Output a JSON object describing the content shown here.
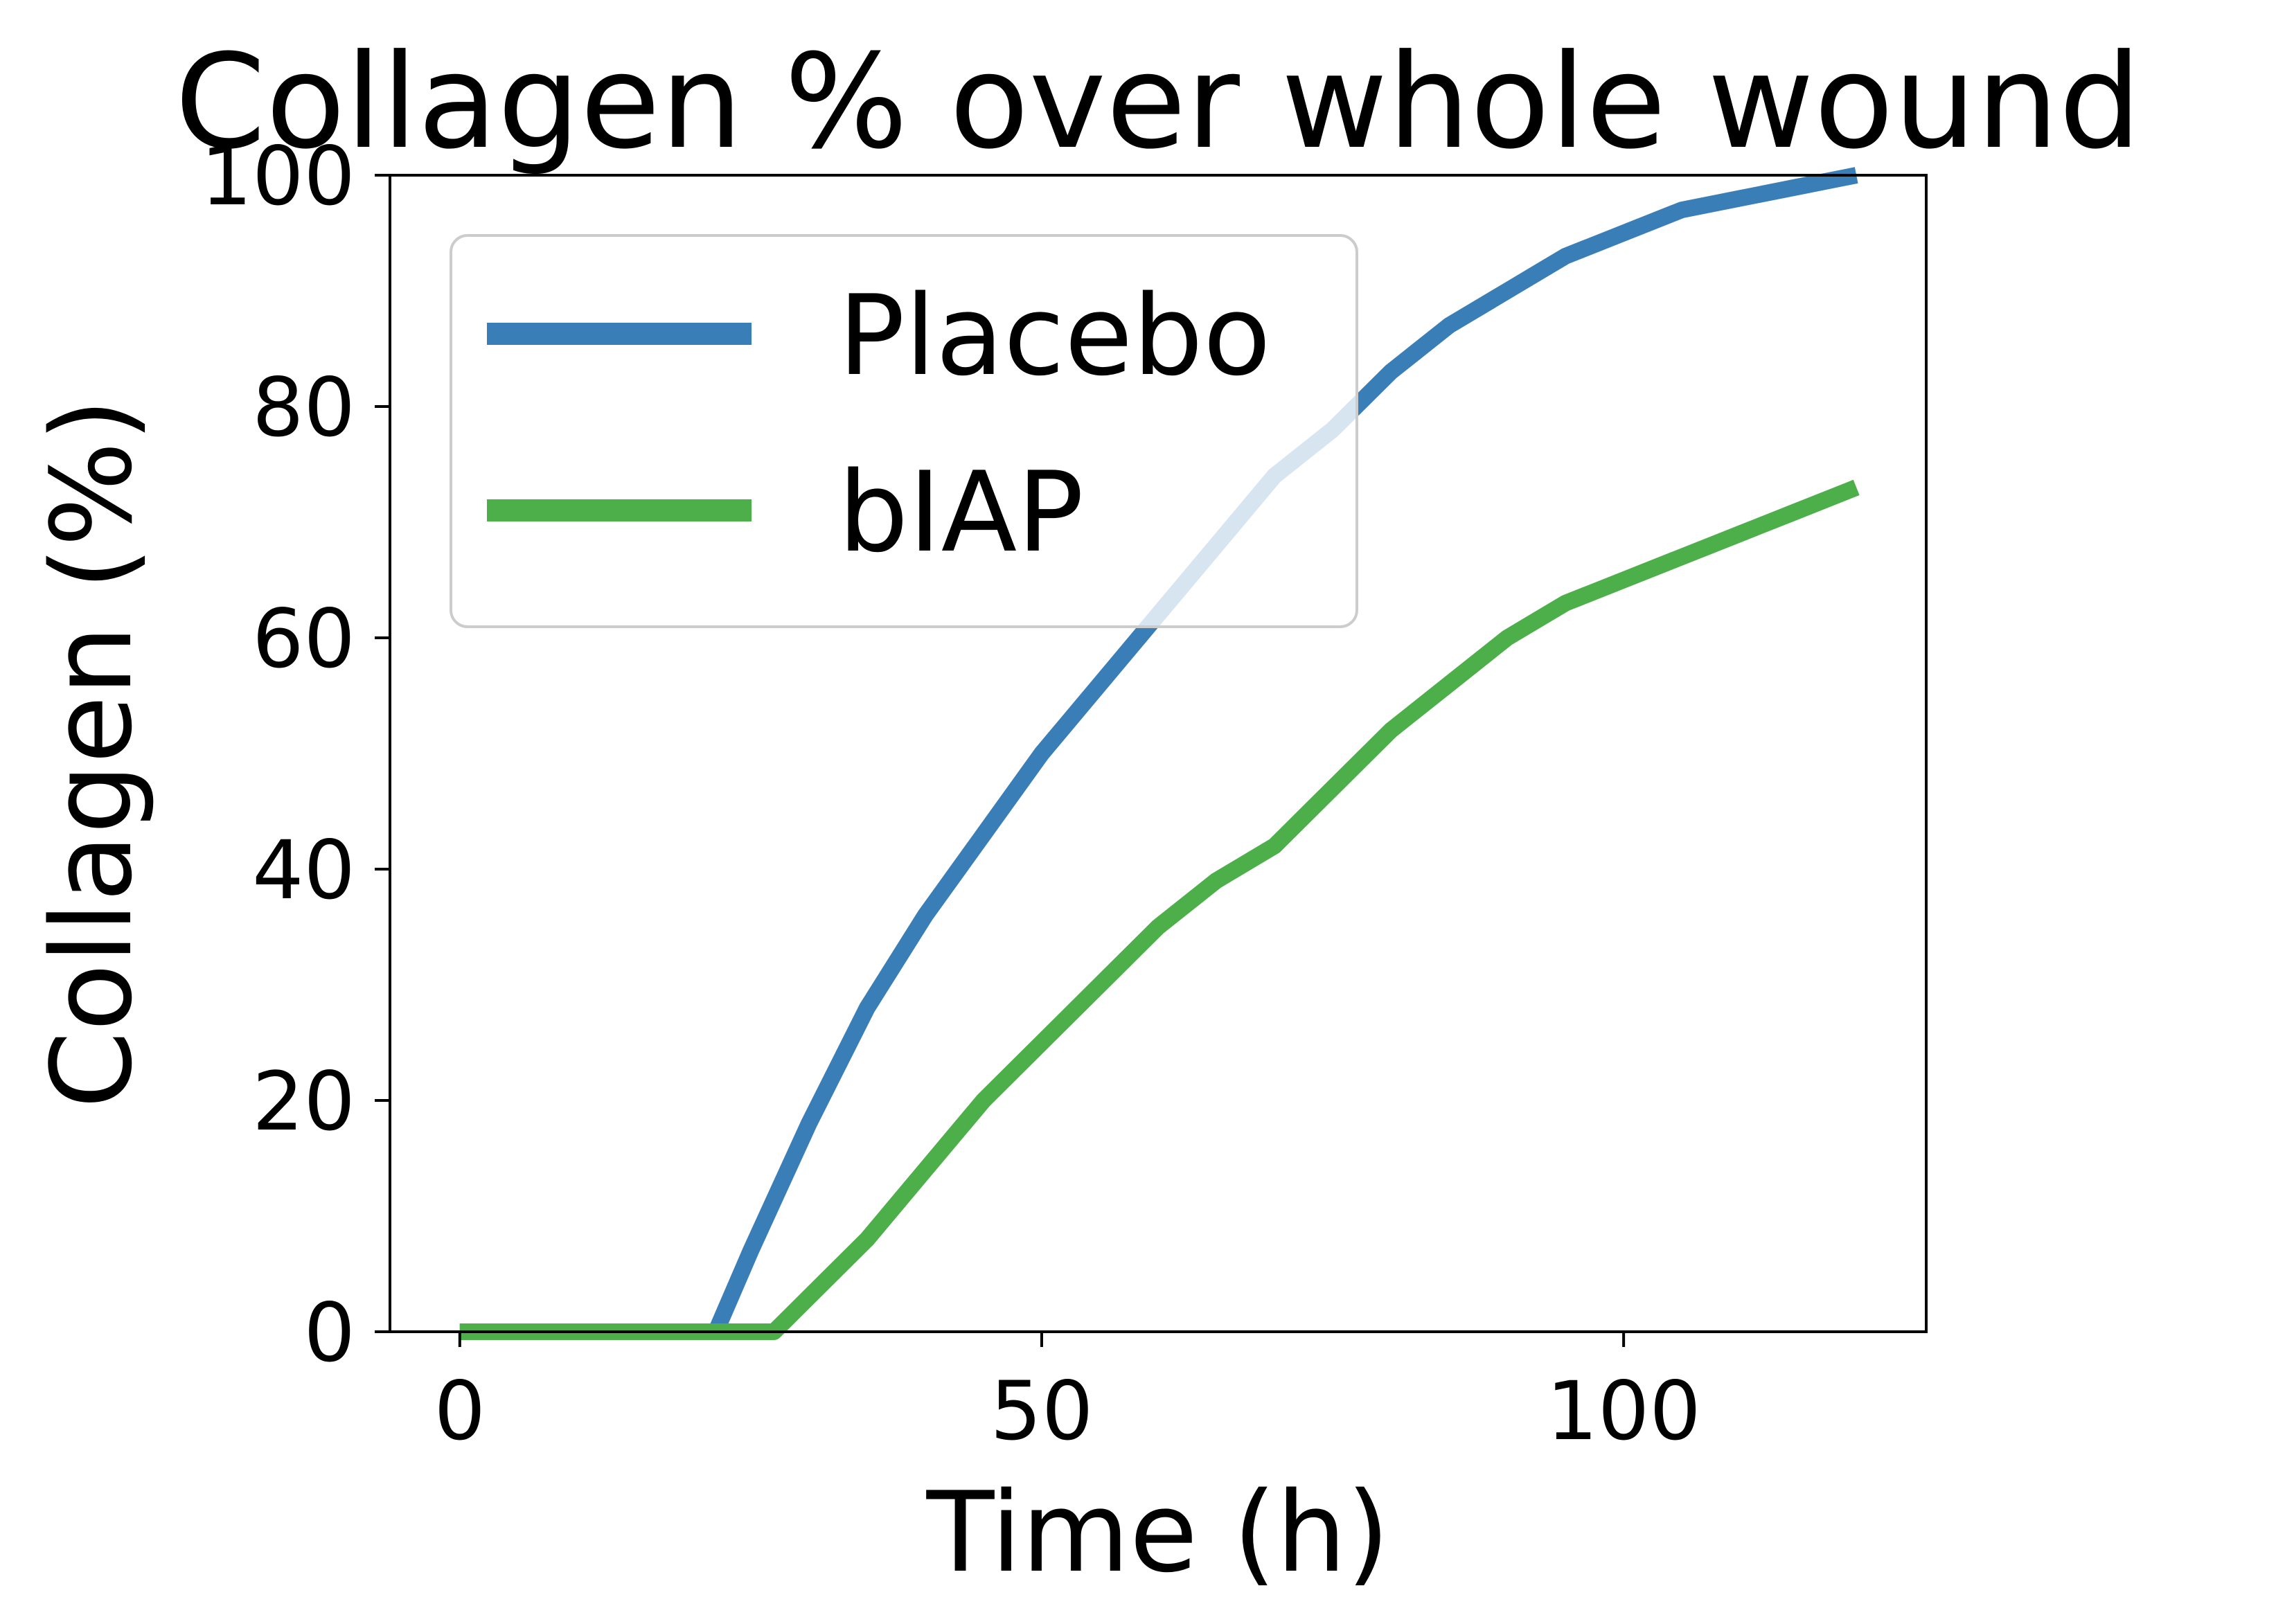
{
  "chart_data": {
    "type": "line",
    "title": "Collagen % over whole wound",
    "xlabel": "Time (h)",
    "ylabel": "Collagen (%)",
    "xlim": [
      -6,
      126
    ],
    "ylim": [
      0,
      100
    ],
    "xticks": [
      0,
      50,
      100
    ],
    "yticks": [
      0,
      20,
      40,
      60,
      80,
      100
    ],
    "grid": false,
    "legend_position": "upper-left",
    "series": [
      {
        "name": "Placebo",
        "color": "#3a7eb8",
        "x": [
          0,
          5,
          10,
          15,
          20,
          22,
          25,
          30,
          35,
          40,
          45,
          50,
          55,
          60,
          65,
          70,
          75,
          80,
          85,
          90,
          95,
          100,
          105,
          110,
          115,
          120
        ],
        "y": [
          0,
          0,
          0,
          0,
          0,
          0,
          7,
          18,
          28,
          36,
          43,
          50,
          56,
          62,
          68,
          74,
          78,
          83,
          87,
          90,
          93,
          95,
          97,
          98,
          99,
          100
        ]
      },
      {
        "name": "bIAP",
        "color": "#4daf4a",
        "x": [
          0,
          5,
          10,
          15,
          20,
          25,
          27,
          30,
          35,
          40,
          45,
          50,
          55,
          60,
          65,
          70,
          75,
          80,
          85,
          90,
          95,
          100,
          105,
          110,
          115,
          120
        ],
        "y": [
          0,
          0,
          0,
          0,
          0,
          0,
          0,
          3,
          8,
          14,
          20,
          25,
          30,
          35,
          39,
          42,
          47,
          52,
          56,
          60,
          63,
          65,
          67,
          69,
          71,
          73
        ]
      }
    ]
  }
}
